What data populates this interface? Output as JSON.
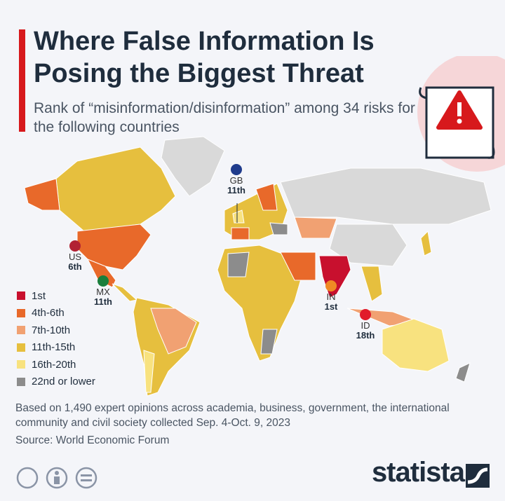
{
  "header": {
    "title": "Where False Information Is Posing the Biggest Threat",
    "subtitle": "Rank of “misinformation/disinformation” among 34 risks for the following countries"
  },
  "callouts": [
    {
      "code": "GB",
      "rank": "11th"
    },
    {
      "code": "US",
      "rank": "6th"
    },
    {
      "code": "MX",
      "rank": "11th"
    },
    {
      "code": "IN",
      "rank": "1st"
    },
    {
      "code": "ID",
      "rank": "18th"
    }
  ],
  "legend": {
    "items": [
      {
        "label": "1st",
        "color": "#c8102e"
      },
      {
        "label": "4th-6th",
        "color": "#e8692a"
      },
      {
        "label": "7th-10th",
        "color": "#f1a172"
      },
      {
        "label": "11th-15th",
        "color": "#e6bf3e"
      },
      {
        "label": "16th-20th",
        "color": "#f8e27f"
      },
      {
        "label": "22nd or lower",
        "color": "#8c8c8c"
      }
    ]
  },
  "footer": {
    "note": "Based on 1,490 expert opinions across academia, business, government, the international community and civil society collected Sep. 4-Oct. 9, 2023",
    "source": "Source: World Economic Forum",
    "brand": "statista"
  }
}
